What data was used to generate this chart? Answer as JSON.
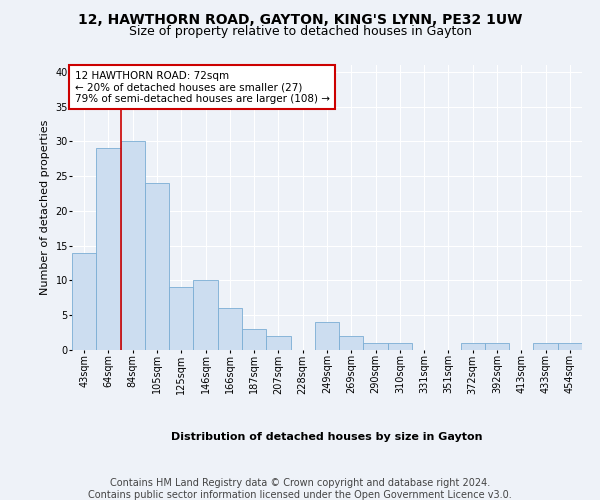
{
  "title_line1": "12, HAWTHORN ROAD, GAYTON, KING'S LYNN, PE32 1UW",
  "title_line2": "Size of property relative to detached houses in Gayton",
  "xlabel": "Distribution of detached houses by size in Gayton",
  "ylabel": "Number of detached properties",
  "categories": [
    "43sqm",
    "64sqm",
    "84sqm",
    "105sqm",
    "125sqm",
    "146sqm",
    "166sqm",
    "187sqm",
    "207sqm",
    "228sqm",
    "249sqm",
    "269sqm",
    "290sqm",
    "310sqm",
    "331sqm",
    "351sqm",
    "372sqm",
    "392sqm",
    "413sqm",
    "433sqm",
    "454sqm"
  ],
  "values": [
    14,
    29,
    30,
    24,
    9,
    10,
    6,
    3,
    2,
    0,
    4,
    2,
    1,
    1,
    0,
    0,
    1,
    1,
    0,
    1,
    1
  ],
  "bar_color": "#ccddf0",
  "bar_edge_color": "#7aadd4",
  "vline_color": "#cc0000",
  "vline_pos": 1.5,
  "annotation_line1": "12 HAWTHORN ROAD: 72sqm",
  "annotation_line2": "← 20% of detached houses are smaller (27)",
  "annotation_line3": "79% of semi-detached houses are larger (108) →",
  "annotation_box_color": "#ffffff",
  "annotation_box_edge": "#cc0000",
  "ylim": [
    0,
    41
  ],
  "yticks": [
    0,
    5,
    10,
    15,
    20,
    25,
    30,
    35,
    40
  ],
  "footnote_line1": "Contains HM Land Registry data © Crown copyright and database right 2024.",
  "footnote_line2": "Contains public sector information licensed under the Open Government Licence v3.0.",
  "bg_color": "#eef2f8",
  "plot_bg_color": "#eef2f8",
  "grid_color": "#ffffff",
  "title_fontsize": 10,
  "subtitle_fontsize": 9,
  "axis_label_fontsize": 8,
  "tick_fontsize": 7,
  "footnote_fontsize": 7
}
